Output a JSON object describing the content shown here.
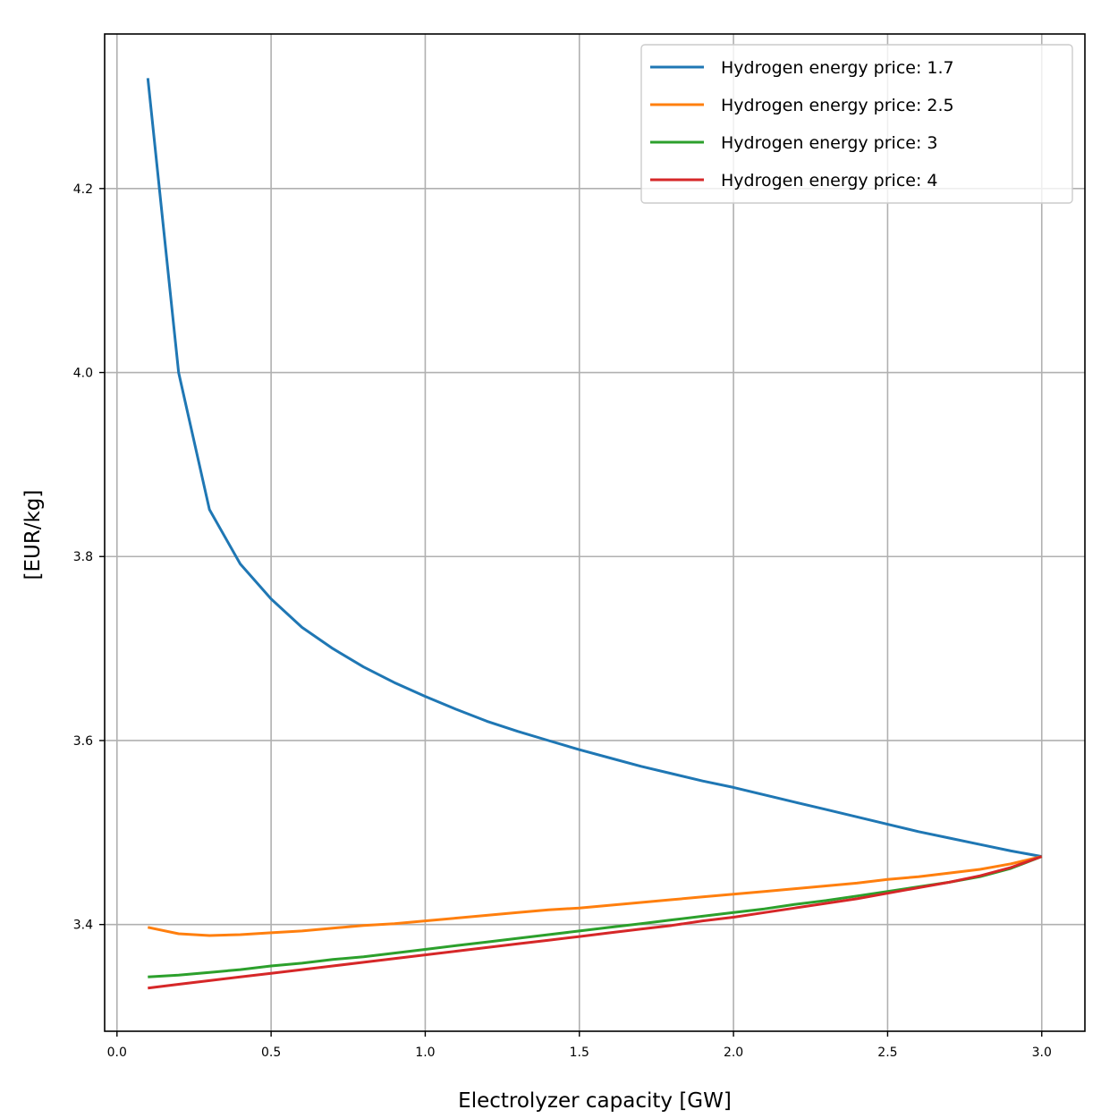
{
  "chart_data": {
    "type": "line",
    "xlabel": "Electrolyzer capacity [GW]",
    "ylabel": "[EUR/kg]",
    "xlim": [
      -0.04,
      3.14
    ],
    "ylim": [
      3.284,
      4.368
    ],
    "xticks": [
      "0.0",
      "0.5",
      "1.0",
      "1.5",
      "2.0",
      "2.5",
      "3.0"
    ],
    "yticks": [
      "3.4",
      "3.6",
      "3.8",
      "4.0",
      "4.2"
    ],
    "grid": true,
    "legend_position": "top-right",
    "x": [
      0.1,
      0.2,
      0.3,
      0.4,
      0.5,
      0.6,
      0.7,
      0.8,
      0.9,
      1.0,
      1.1,
      1.2,
      1.3,
      1.4,
      1.5,
      1.6,
      1.7,
      1.8,
      1.9,
      2.0,
      2.1,
      2.2,
      2.3,
      2.4,
      2.5,
      2.6,
      2.7,
      2.8,
      2.9,
      3.0
    ],
    "series": [
      {
        "name": "Hydrogen energy price: 1.7",
        "color": "#1f77b4",
        "values": [
          4.32,
          4.0,
          3.851,
          3.792,
          3.754,
          3.723,
          3.7,
          3.68,
          3.663,
          3.648,
          3.634,
          3.621,
          3.61,
          3.6,
          3.59,
          3.581,
          3.572,
          3.564,
          3.556,
          3.549,
          3.541,
          3.533,
          3.525,
          3.517,
          3.509,
          3.501,
          3.494,
          3.487,
          3.48,
          3.474
        ]
      },
      {
        "name": "Hydrogen energy price: 2.5",
        "color": "#ff7f0e",
        "values": [
          3.397,
          3.39,
          3.388,
          3.389,
          3.391,
          3.393,
          3.396,
          3.399,
          3.401,
          3.404,
          3.407,
          3.41,
          3.413,
          3.416,
          3.418,
          3.421,
          3.424,
          3.427,
          3.43,
          3.433,
          3.436,
          3.439,
          3.442,
          3.445,
          3.449,
          3.452,
          3.456,
          3.46,
          3.466,
          3.474
        ]
      },
      {
        "name": "Hydrogen energy price: 3",
        "color": "#2ca02c",
        "values": [
          3.343,
          3.345,
          3.348,
          3.351,
          3.355,
          3.358,
          3.362,
          3.365,
          3.369,
          3.373,
          3.377,
          3.381,
          3.385,
          3.389,
          3.393,
          3.397,
          3.401,
          3.405,
          3.409,
          3.413,
          3.417,
          3.422,
          3.426,
          3.431,
          3.436,
          3.441,
          3.446,
          3.452,
          3.461,
          3.474
        ]
      },
      {
        "name": "Hydrogen energy price: 4",
        "color": "#d62728",
        "values": [
          3.331,
          3.335,
          3.339,
          3.343,
          3.347,
          3.351,
          3.355,
          3.359,
          3.363,
          3.367,
          3.371,
          3.375,
          3.379,
          3.383,
          3.387,
          3.391,
          3.395,
          3.399,
          3.404,
          3.408,
          3.413,
          3.418,
          3.423,
          3.428,
          3.434,
          3.44,
          3.446,
          3.453,
          3.462,
          3.474
        ]
      }
    ]
  }
}
